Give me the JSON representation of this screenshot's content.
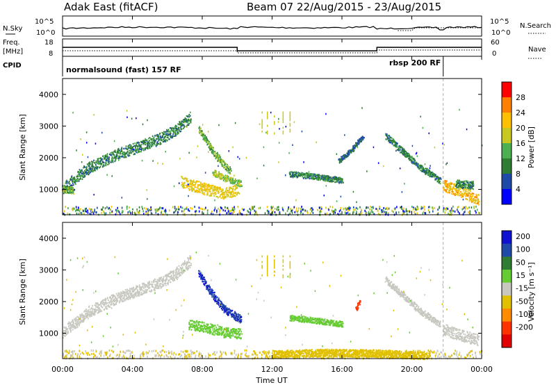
{
  "header": {
    "station": "Adak East (fitACF)",
    "beam_date": "Beam 07 22/Aug/2015 - 23/Aug/2015"
  },
  "top_panels": {
    "nsky_label": "N.Sky",
    "nsky_ticks": [
      "10^5",
      "10^0"
    ],
    "nsearch_label": "N.Search",
    "nsearch_ticks": [
      "10^5",
      "10^0"
    ],
    "freq_label": "Freq.",
    "freq_unit": "[MHz]",
    "freq_ticks": [
      "18",
      "8"
    ],
    "nave_label": "Nave",
    "nave_ticks": [
      "60",
      "0"
    ],
    "cpid_label": "CPID",
    "cpid_segments": [
      "normalsound (fast) 157 RF",
      "rbsp 200 RF"
    ],
    "freq_profile": [
      [
        0,
        13.2
      ],
      [
        10,
        13.2
      ],
      [
        10,
        10.8
      ],
      [
        18,
        10.8
      ],
      [
        18,
        13.2
      ],
      [
        24,
        13.2
      ]
    ],
    "cpid_change_hour": 21.8
  },
  "axes": {
    "xlabel": "Time UT",
    "xticks": [
      "00:00",
      "04:00",
      "08:00",
      "12:00",
      "16:00",
      "20:00",
      "00:00"
    ],
    "ylabel": "Slant Range [km]",
    "yticks": [
      "1000",
      "2000",
      "3000",
      "4000"
    ]
  },
  "power_colorbar": {
    "label": "Power [dB]",
    "ticks": [
      "4",
      "8",
      "12",
      "16",
      "20",
      "24",
      "28"
    ],
    "colors": [
      "#0000ff",
      "#1f4aa8",
      "#2e7d32",
      "#4caf50",
      "#c8c820",
      "#ffc000",
      "#ff7f00",
      "#ff0000"
    ]
  },
  "velocity_colorbar": {
    "label": "Velocity [m s⁻¹]",
    "ticks": [
      "200",
      "100",
      "50",
      "15",
      "-15",
      "-50",
      "-100",
      "-200"
    ],
    "colors": [
      "#1010d0",
      "#1f4aa8",
      "#2e7d32",
      "#66cc33",
      "#c8c8c0",
      "#e0c000",
      "#ff8c00",
      "#ff3300",
      "#e00000"
    ]
  },
  "chart_data": [
    {
      "type": "heatmap",
      "name": "power",
      "xlim": [
        0,
        24
      ],
      "ylim": [
        200,
        4500
      ],
      "patches": [
        {
          "x": [
            0.0,
            1.5,
            3.0,
            4.5,
            5.5,
            6.5,
            7.3
          ],
          "y": [
            1050,
            1700,
            2100,
            2400,
            2600,
            2900,
            3300
          ],
          "w": 180,
          "v": 10
        },
        {
          "x": [
            0.0,
            0.3,
            0.6
          ],
          "y": [
            1050,
            1000,
            1000
          ],
          "w": 120,
          "v": 14
        },
        {
          "x": [
            7.8,
            8.5,
            9.2,
            9.6
          ],
          "y": [
            2900,
            2300,
            1800,
            1600
          ],
          "w": 120,
          "v": 14
        },
        {
          "x": [
            6.8,
            8.0,
            9.2,
            10.0
          ],
          "y": [
            1250,
            1050,
            900,
            1000
          ],
          "w": 180,
          "v": 20
        },
        {
          "x": [
            8.6,
            9.6,
            10.2
          ],
          "y": [
            1550,
            1300,
            1200
          ],
          "w": 100,
          "v": 16
        },
        {
          "x": [
            13.0,
            14.0,
            15.0,
            16.0
          ],
          "y": [
            1500,
            1450,
            1380,
            1300
          ],
          "w": 90,
          "v": 10
        },
        {
          "x": [
            15.8,
            16.6,
            17.2
          ],
          "y": [
            1900,
            2300,
            2700
          ],
          "w": 80,
          "v": 8
        },
        {
          "x": [
            18.5,
            19.5,
            20.5,
            21.6
          ],
          "y": [
            2700,
            2200,
            1700,
            1300
          ],
          "w": 100,
          "v": 10
        },
        {
          "x": [
            21.8,
            22.8,
            23.8
          ],
          "y": [
            1150,
            950,
            700
          ],
          "w": 180,
          "v": 22
        },
        {
          "x": [
            22.5,
            23.5
          ],
          "y": [
            1200,
            1150
          ],
          "w": 120,
          "v": 10
        }
      ]
    },
    {
      "type": "heatmap",
      "name": "velocity",
      "xlim": [
        0,
        24
      ],
      "ylim": [
        200,
        4500
      ],
      "patches": [
        {
          "x": [
            0.0,
            1.5,
            3.0,
            4.5,
            5.5,
            6.5,
            7.3
          ],
          "y": [
            1050,
            1700,
            2100,
            2400,
            2600,
            2900,
            3300
          ],
          "w": 180,
          "v": 0
        },
        {
          "x": [
            7.8,
            8.5,
            9.2,
            10.2
          ],
          "y": [
            2900,
            2300,
            1800,
            1450
          ],
          "w": 120,
          "v": 200
        },
        {
          "x": [
            7.2,
            8.2,
            9.2,
            10.2
          ],
          "y": [
            1300,
            1200,
            1050,
            1000
          ],
          "w": 160,
          "v": 30
        },
        {
          "x": [
            13.0,
            14.0,
            15.0,
            16.0
          ],
          "y": [
            1500,
            1450,
            1380,
            1300
          ],
          "w": 90,
          "v": 30
        },
        {
          "x": [
            16.8,
            17.0
          ],
          "y": [
            1800,
            2000
          ],
          "w": 90,
          "v": -150
        },
        {
          "x": [
            18.5,
            19.5,
            20.5,
            21.6
          ],
          "y": [
            2700,
            2200,
            1700,
            1300
          ],
          "w": 100,
          "v": 0
        },
        {
          "x": [
            21.8,
            22.8,
            23.8
          ],
          "y": [
            1150,
            950,
            800
          ],
          "w": 180,
          "v": 0
        },
        {
          "x": [
            12.0,
            15.0,
            18.0,
            21.0
          ],
          "y": [
            350,
            400,
            380,
            300
          ],
          "w": 120,
          "v": -30
        }
      ]
    }
  ]
}
